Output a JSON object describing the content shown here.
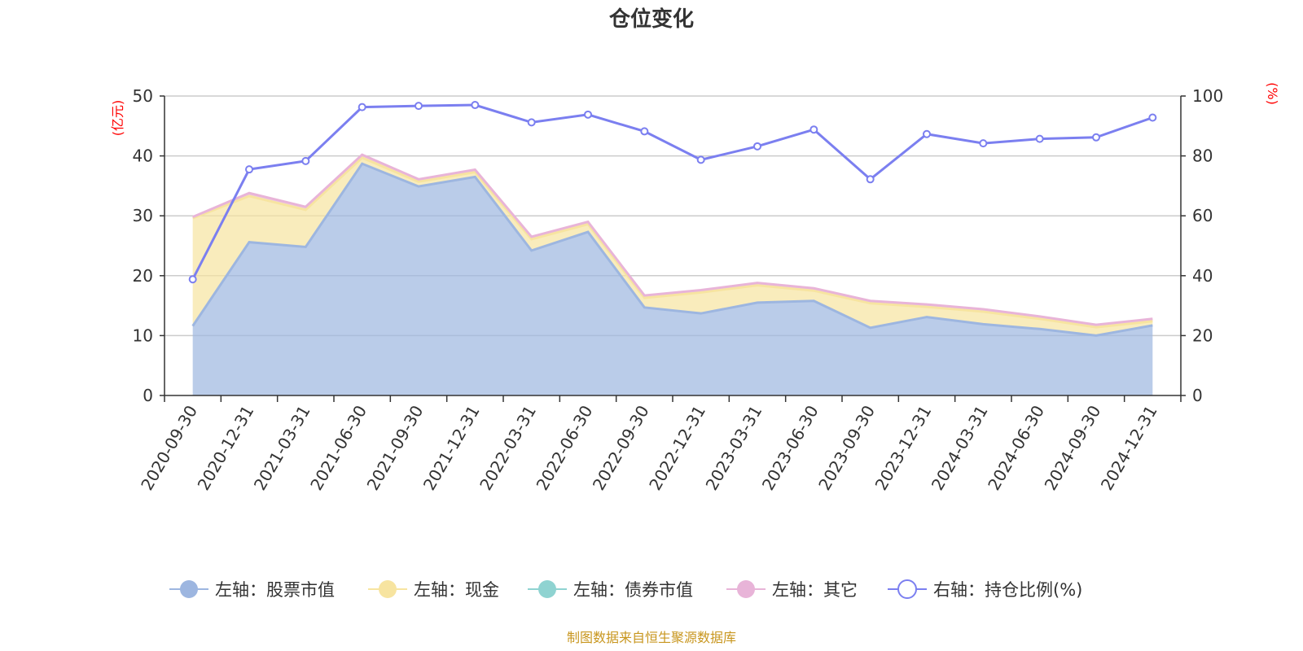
{
  "chart_data": {
    "type": "area",
    "title": "仓位变化",
    "categories": [
      "2020-09-30",
      "2020-12-31",
      "2021-03-31",
      "2021-06-30",
      "2021-09-30",
      "2021-12-31",
      "2022-03-31",
      "2022-06-30",
      "2022-09-30",
      "2022-12-31",
      "2023-03-31",
      "2023-06-30",
      "2023-09-30",
      "2023-12-31",
      "2024-03-31",
      "2024-06-30",
      "2024-09-30",
      "2024-12-31"
    ],
    "left_axis": {
      "unit": "(亿元)",
      "ylim": [
        0,
        50
      ],
      "ticks": [
        "0",
        "10",
        "20",
        "30",
        "40",
        "50"
      ]
    },
    "right_axis": {
      "unit": "(%)",
      "ylim": [
        0,
        100
      ],
      "ticks": [
        "0",
        "20",
        "40",
        "60",
        "80",
        "100"
      ]
    },
    "series": [
      {
        "name": "左轴：股票市值",
        "axis": "left",
        "stacked": true,
        "color": "#9db6e0",
        "values": [
          11.6,
          25.6,
          24.8,
          38.7,
          34.9,
          36.5,
          24.2,
          27.3,
          14.7,
          13.7,
          15.5,
          15.8,
          11.3,
          13.1,
          11.9,
          11.1,
          10.0,
          11.7
        ]
      },
      {
        "name": "左轴：现金",
        "axis": "left",
        "stacked": true,
        "color": "#f7e4a0",
        "values": [
          18.0,
          7.7,
          6.2,
          1.0,
          0.8,
          0.8,
          1.9,
          1.3,
          1.6,
          3.5,
          2.9,
          1.7,
          4.1,
          1.7,
          2.1,
          1.7,
          1.4,
          0.7
        ]
      },
      {
        "name": "左轴：债券市值",
        "axis": "left",
        "stacked": true,
        "color": "#8fd3d1",
        "values": [
          0,
          0,
          0,
          0,
          0,
          0,
          0,
          0,
          0,
          0,
          0,
          0,
          0,
          0,
          0,
          0,
          0,
          0
        ]
      },
      {
        "name": "左轴：其它",
        "axis": "left",
        "stacked": true,
        "color": "#e8b4d8",
        "values": [
          0.2,
          0.5,
          0.5,
          0.5,
          0.4,
          0.4,
          0.4,
          0.4,
          0.4,
          0.4,
          0.4,
          0.4,
          0.4,
          0.4,
          0.4,
          0.4,
          0.4,
          0.4
        ]
      },
      {
        "name": "右轴：持仓比例(%)",
        "axis": "right",
        "type": "line",
        "color": "#7b7ff0",
        "values": [
          38.8,
          75.5,
          78.3,
          96.3,
          96.7,
          97.0,
          91.2,
          93.8,
          88.2,
          78.7,
          83.2,
          88.8,
          72.2,
          87.3,
          84.2,
          85.7,
          86.2,
          92.8
        ]
      }
    ]
  },
  "source": "制图数据来自恒生聚源数据库"
}
